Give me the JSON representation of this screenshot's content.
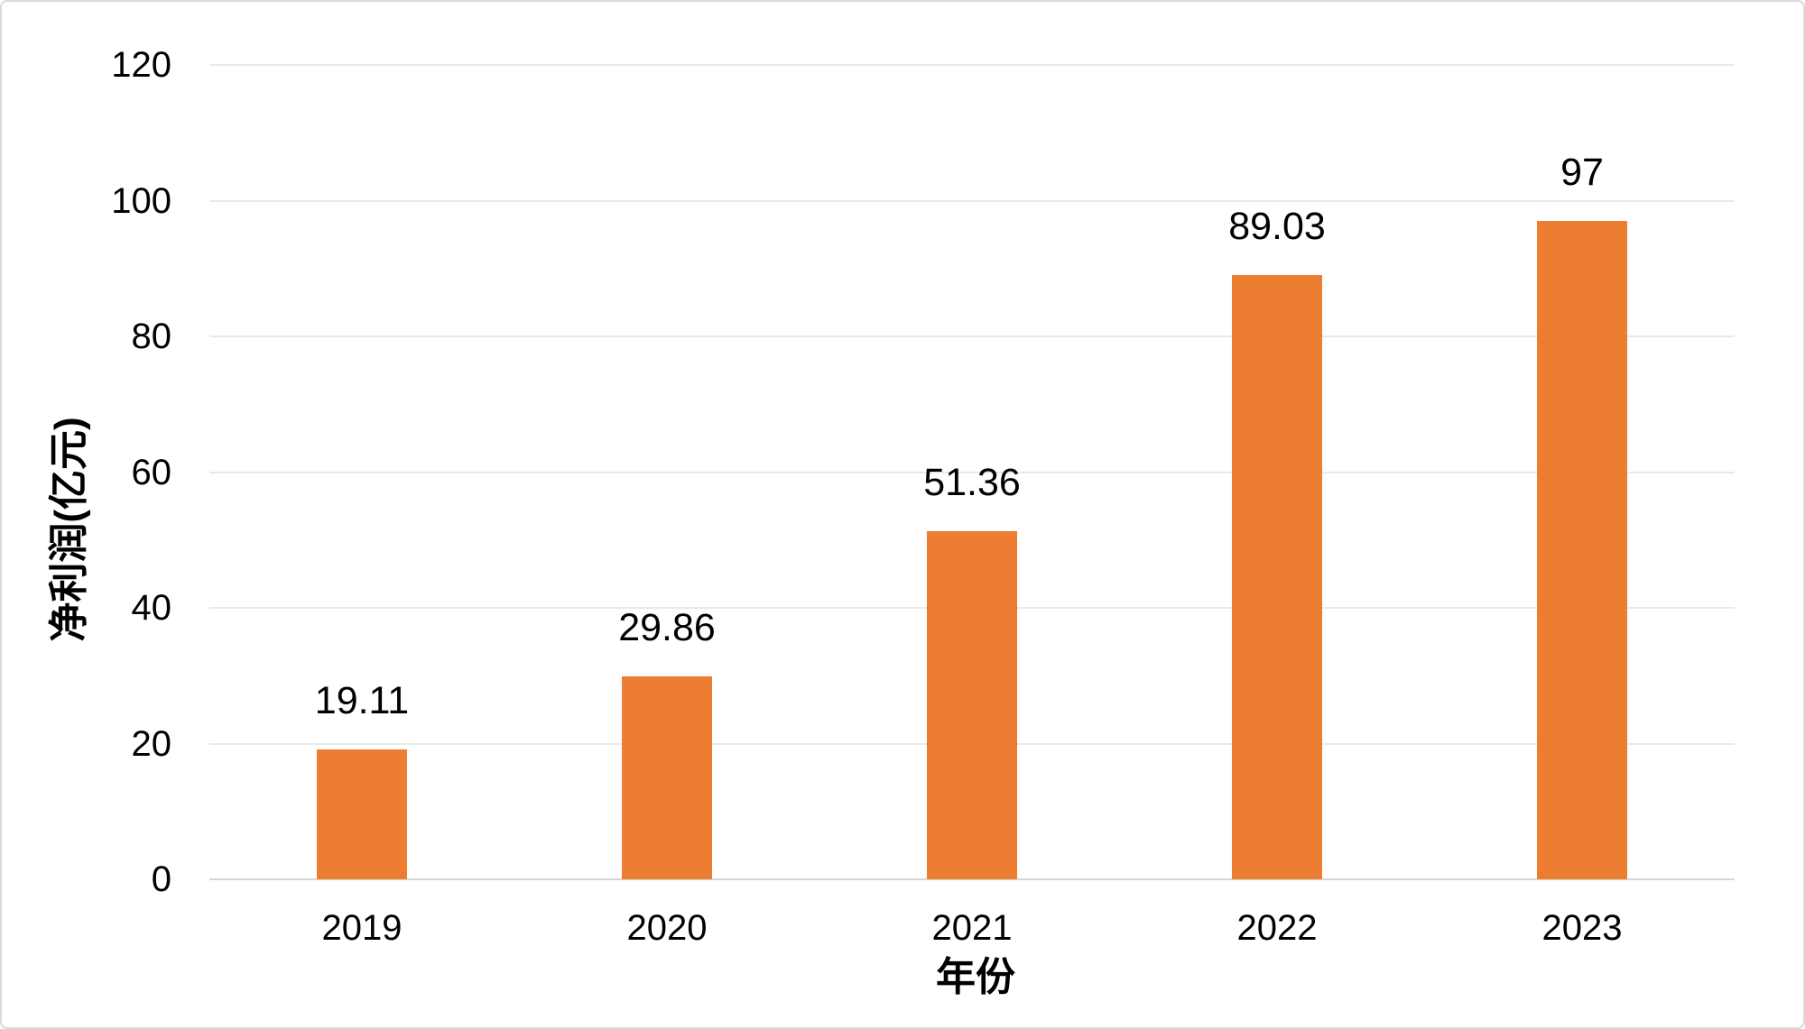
{
  "chart_data": {
    "type": "bar",
    "title": "",
    "categories": [
      "2019",
      "2020",
      "2021",
      "2022",
      "2023"
    ],
    "values": [
      19.11,
      29.86,
      51.36,
      89.03,
      97
    ],
    "data_labels": [
      "19.11",
      "29.86",
      "51.36",
      "89.03",
      "97"
    ],
    "xlabel": "年份",
    "ylabel": "净利润(亿元)",
    "ylim": [
      0,
      120
    ],
    "ytick_interval": 20,
    "yticks": [
      0,
      20,
      40,
      60,
      80,
      100,
      120
    ],
    "grid": "horizontal",
    "legend": "none",
    "bar_color": "#ED7D31",
    "gridline_color": "#E9E9E9",
    "axis_line_color": "#D6D6D6",
    "border_color": "#D9D9D9",
    "text_color": "#000000",
    "background_color": "#FFFFFF"
  }
}
